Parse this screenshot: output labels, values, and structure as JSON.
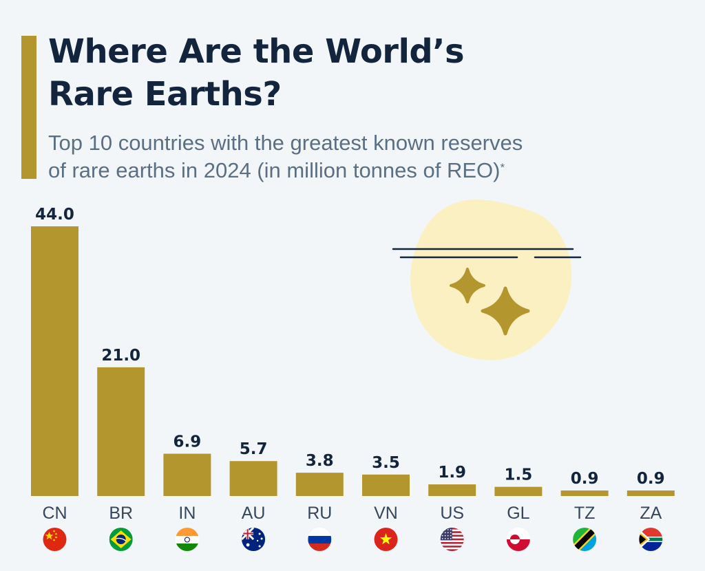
{
  "header": {
    "title_line1": "Where Are the World’s",
    "title_line2": "Rare Earths?",
    "subtitle_line1": "Top 10 countries with the greatest known reserves",
    "subtitle_line2": "of rare earths in 2024 (in million tonnes of REO)",
    "subtitle_mark": "*"
  },
  "colors": {
    "bar": "#b4962f",
    "title": "#13243d",
    "subtitle": "#5b6f84",
    "background": "#f3f6f9",
    "accent": "#b4962f",
    "illustration_blob": "#fbf0c2"
  },
  "illustration": {
    "icon": "sparkle-icon"
  },
  "chart_data": {
    "type": "bar",
    "title": "Where Are the World’s Rare Earths?",
    "subtitle": "Top 10 countries with the greatest known reserves of rare earths in 2024 (in million tonnes of REO)*",
    "xlabel": "",
    "ylabel": "",
    "ylim": [
      0,
      44
    ],
    "grid": false,
    "categories": [
      "CN",
      "BR",
      "IN",
      "AU",
      "RU",
      "VN",
      "US",
      "GL",
      "TZ",
      "ZA"
    ],
    "values": [
      44.0,
      21.0,
      6.9,
      5.7,
      3.8,
      3.5,
      1.9,
      1.5,
      0.9,
      0.9
    ],
    "value_labels": [
      "44.0",
      "21.0",
      "6.9",
      "5.7",
      "3.8",
      "3.5",
      "1.9",
      "1.5",
      "0.9",
      "0.9"
    ],
    "flags": [
      "cn-flag-icon",
      "br-flag-icon",
      "in-flag-icon",
      "au-flag-icon",
      "ru-flag-icon",
      "vn-flag-icon",
      "us-flag-icon",
      "gl-flag-icon",
      "tz-flag-icon",
      "za-flag-icon"
    ]
  }
}
